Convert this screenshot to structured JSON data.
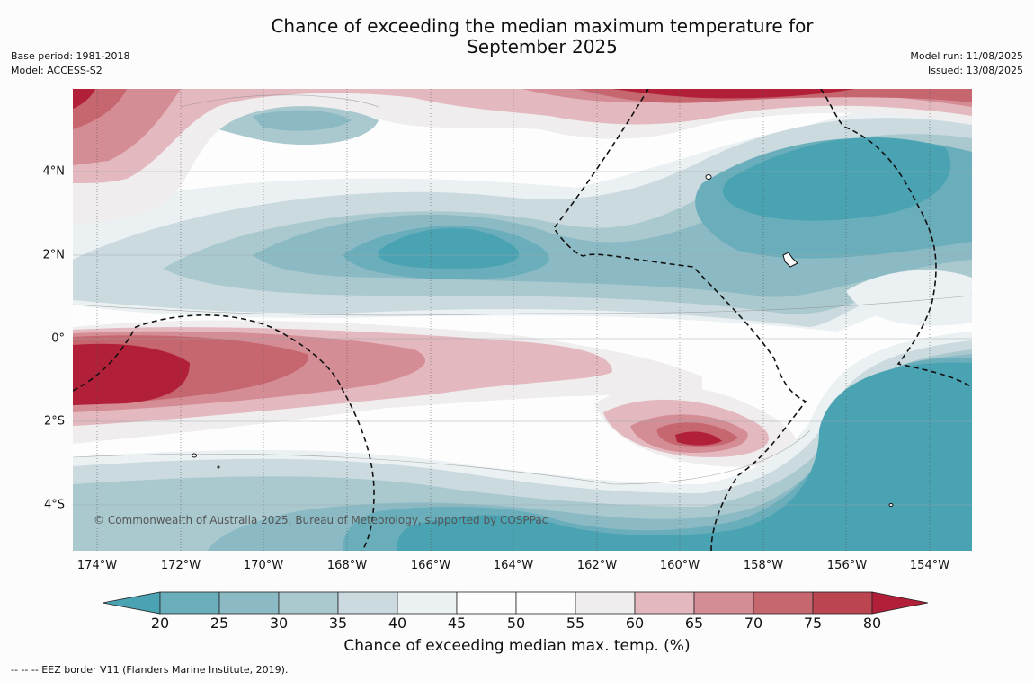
{
  "header": {
    "title": "Chance of exceeding the median maximum temperature for",
    "title_line2": "September 2025",
    "base_period": "Base period: 1981-2018",
    "model": "Model: ACCESS-S2",
    "model_run": "Model run: 11/08/2025",
    "issued": "Issued: 13/08/2025"
  },
  "map": {
    "credit": "© Commonwealth of Australia 2025, Bureau of Meteorology, supported by COSPPac",
    "lat_labels": [
      "4°N",
      "2°N",
      "0°",
      "2°S",
      "4°S"
    ],
    "lon_labels": [
      "174°W",
      "172°W",
      "170°W",
      "168°W",
      "166°W",
      "164°W",
      "162°W",
      "160°W",
      "158°W",
      "156°W",
      "154°W"
    ]
  },
  "colorbar": {
    "ticks": [
      "20",
      "25",
      "30",
      "35",
      "40",
      "45",
      "50",
      "55",
      "60",
      "65",
      "70",
      "75",
      "80"
    ],
    "colors": [
      "#4aa3b3",
      "#6aaebb",
      "#8bbac5",
      "#aac9cf",
      "#cbdadf",
      "#ebf1f3",
      "#fdfdfd",
      "#fdfdfd",
      "#efedee",
      "#e3b8bf",
      "#d48c95",
      "#c6666f",
      "#bb4550",
      "#b21f38"
    ],
    "label": "Chance of exceeding median max. temp. (%)"
  },
  "footnote": "--  --  -- EEZ border V11 (Flanders Marine Institute, 2019)."
}
